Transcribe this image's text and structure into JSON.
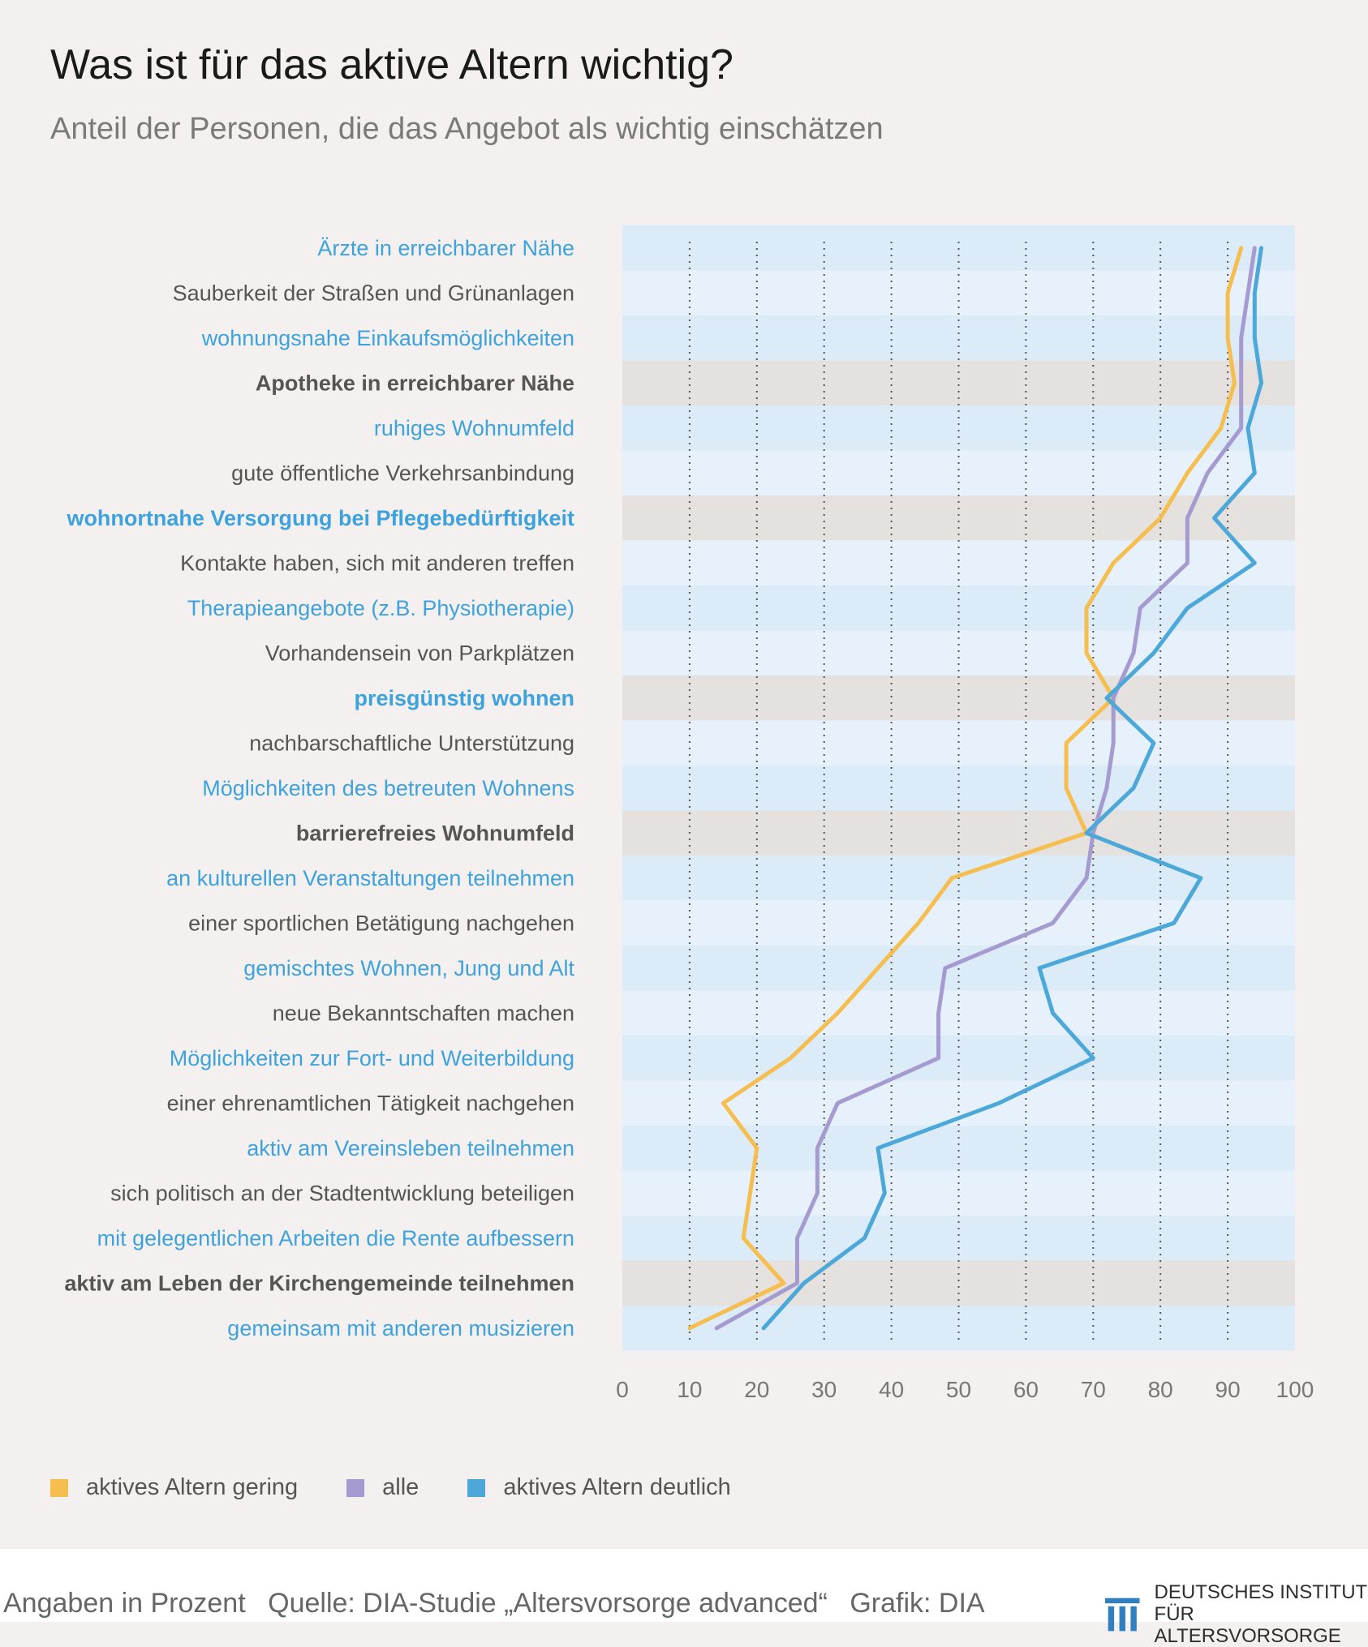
{
  "title": "Was ist für das aktive Altern wichtig?",
  "subtitle": "Anteil der Personen, die das Angebot als wichtig einschätzen",
  "colors": {
    "gering": "#f6bd4f",
    "alle": "#a69bd0",
    "deutlich": "#4ca8d9",
    "band_light_a": "#dcebf8",
    "band_light_b": "#e7f1fb",
    "band_grey": "#e4e1df",
    "label_blue": "#3ea3dc",
    "label_dark": "#555555"
  },
  "legend": [
    {
      "label": "aktives Altern gering",
      "color": "#f6bd4f"
    },
    {
      "label": "alle",
      "color": "#a69bd0"
    },
    {
      "label": "aktives Altern deutlich",
      "color": "#4ca8d9"
    }
  ],
  "footer": {
    "units": "Angaben in Prozent",
    "source": "Quelle: DIA-Studie „Altersvorsorge advanced“",
    "graphic": "Grafik: DIA",
    "logo_line1": "DEUTSCHES INSTITUT",
    "logo_line2": "FÜR ALTERSVORSORGE"
  },
  "chart_data": {
    "type": "line",
    "orientation": "horizontal",
    "xlim": [
      0,
      100
    ],
    "xticks": [
      "0",
      "10",
      "20",
      "30",
      "40",
      "50",
      "60",
      "70",
      "80",
      "90",
      "100"
    ],
    "grid": true,
    "legend_position": "bottom-left",
    "categories": [
      "Ärzte in erreichbarer Nähe",
      "Sauberkeit der Straßen und Grünanlagen",
      "wohnungsnahe Einkaufsmöglichkeiten",
      "Apotheke in erreichbarer Nähe",
      "ruhiges Wohnumfeld",
      "gute öffentliche Verkehrsanbindung",
      "wohnortnahe Versorgung bei Pflegebedürftigkeit",
      "Kontakte haben, sich mit anderen treffen",
      "Therapieangebote (z.B. Physiotherapie)",
      "Vorhandensein von Parkplätzen",
      "preisgünstig wohnen",
      "nachbarschaftliche Unterstützung",
      "Möglichkeiten des betreuten Wohnens",
      "barrierefreies Wohnumfeld",
      "an kulturellen Veranstaltungen teilnehmen",
      "einer sportlichen Betätigung nachgehen",
      "gemischtes Wohnen, Jung und Alt",
      "neue Bekanntschaften machen",
      "Möglichkeiten zur Fort- und Weiterbildung",
      "einer ehrenamtlichen Tätigkeit nachgehen",
      "aktiv am Vereinsleben teilnehmen",
      "sich politisch an der Stadtentwicklung beteiligen",
      "mit gelegentlichen Arbeiten die Rente aufbessern",
      "aktiv am Leben der Kirchengemeinde teilnehmen",
      "gemeinsam mit anderen musizieren"
    ],
    "category_styles": [
      "blue",
      "dark",
      "blue",
      "dark-bold",
      "blue",
      "dark",
      "blue-bold",
      "dark",
      "blue",
      "dark",
      "blue-bold",
      "dark",
      "blue",
      "dark-bold",
      "blue",
      "dark",
      "blue",
      "dark",
      "blue",
      "dark",
      "blue",
      "dark",
      "blue",
      "dark-bold",
      "blue"
    ],
    "row_bands": [
      "a",
      "b",
      "a",
      "grey",
      "a",
      "b",
      "grey",
      "b",
      "a",
      "b",
      "grey",
      "b",
      "a",
      "grey",
      "a",
      "b",
      "a",
      "b",
      "a",
      "b",
      "a",
      "b",
      "a",
      "grey",
      "a"
    ],
    "series": [
      {
        "name": "aktives Altern gering",
        "color": "#f6bd4f",
        "values": [
          92,
          90,
          90,
          91,
          89,
          84,
          80,
          73,
          69,
          69,
          73,
          66,
          66,
          69,
          49,
          44,
          38,
          32,
          25,
          15,
          20,
          19,
          18,
          24,
          10
        ]
      },
      {
        "name": "alle",
        "color": "#a69bd0",
        "values": [
          94,
          93,
          92,
          92,
          92,
          87,
          84,
          84,
          77,
          76,
          73,
          73,
          72,
          70,
          69,
          64,
          48,
          47,
          47,
          32,
          29,
          29,
          26,
          26,
          14
        ]
      },
      {
        "name": "aktives Altern deutlich",
        "color": "#4ca8d9",
        "values": [
          95,
          94,
          94,
          95,
          93,
          94,
          88,
          94,
          84,
          79,
          72,
          79,
          76,
          69,
          86,
          82,
          62,
          64,
          70,
          56,
          38,
          39,
          36,
          27,
          21
        ]
      }
    ]
  }
}
